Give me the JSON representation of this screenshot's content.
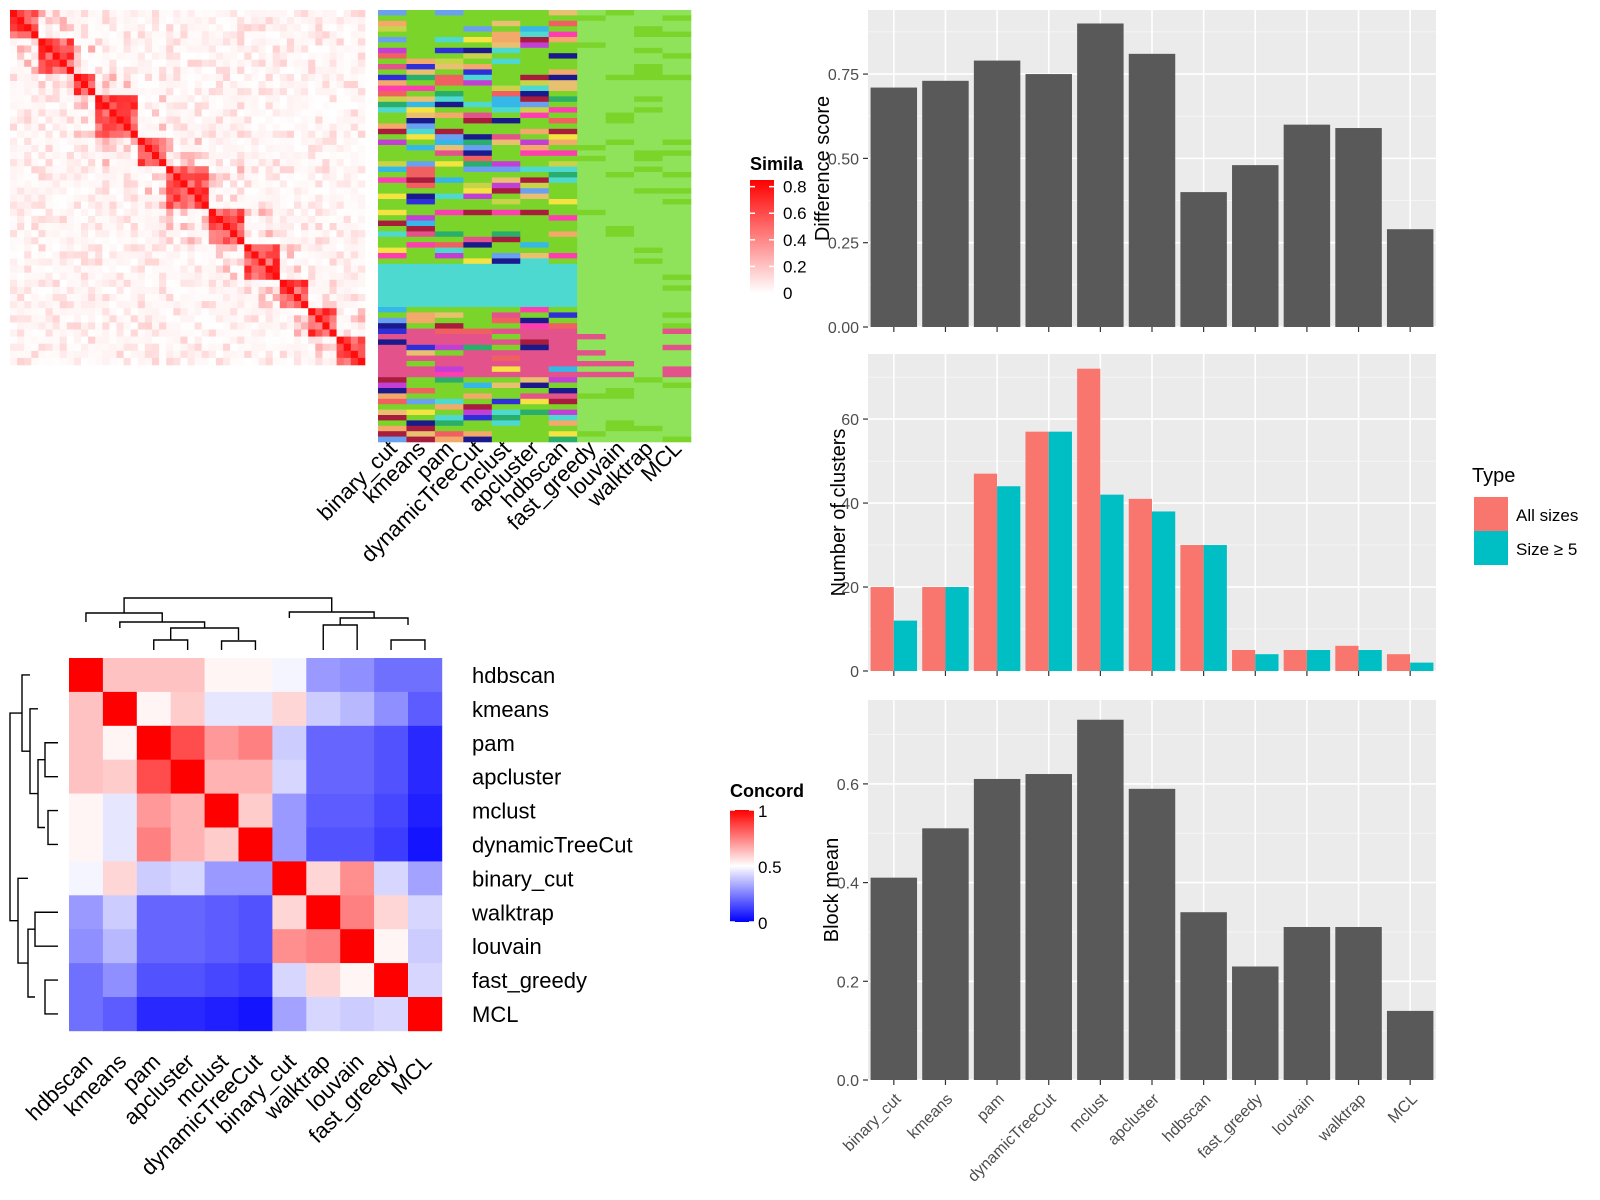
{
  "colors": {
    "panel_bg": "#EBEBEB",
    "grid": "#FFFFFF",
    "bar": "#595959",
    "all_sizes": "#F8766D",
    "size_ge5": "#00BFC4",
    "sim_high": "#FF0000",
    "conc_low": "#0000FF",
    "cluster_bg": "#8FE35A"
  },
  "chart_data": [
    {
      "type": "heatmap",
      "name": "similarity-matrix",
      "legend_title": "Simila",
      "legend_ticks": [
        "0.8",
        "0.6",
        "0.4",
        "0.2",
        "0"
      ],
      "legend_range": [
        0,
        0.85
      ],
      "colors": [
        "#FFFFFF",
        "#FF0000"
      ]
    },
    {
      "type": "heatmap",
      "name": "cluster-assignments",
      "columns": [
        "binary_cut",
        "kmeans",
        "pam",
        "dynamicTreeCut",
        "mclust",
        "apcluster",
        "hdbscan",
        "fast_greedy",
        "louvain",
        "walktrap",
        "MCL"
      ]
    },
    {
      "type": "heatmap",
      "name": "concordance",
      "legend_title": "Concord",
      "legend_ticks": [
        "1",
        "0.5",
        "0"
      ],
      "legend_range": [
        0,
        1
      ],
      "colors": [
        "#0000FF",
        "#FFFFFF",
        "#FF0000"
      ],
      "rows": [
        "hdbscan",
        "kmeans",
        "pam",
        "apcluster",
        "mclust",
        "dynamicTreeCut",
        "binary_cut",
        "walktrap",
        "louvain",
        "fast_greedy",
        "MCL"
      ],
      "columns": [
        "hdbscan",
        "kmeans",
        "pam",
        "apcluster",
        "mclust",
        "dynamicTreeCut",
        "binary_cut",
        "walktrap",
        "louvain",
        "fast_greedy",
        "MCL"
      ],
      "values": [
        [
          1.0,
          0.62,
          0.62,
          0.62,
          0.52,
          0.52,
          0.48,
          0.3,
          0.28,
          0.22,
          0.22
        ],
        [
          0.62,
          1.0,
          0.52,
          0.6,
          0.45,
          0.45,
          0.58,
          0.4,
          0.36,
          0.28,
          0.18
        ],
        [
          0.62,
          0.52,
          1.0,
          0.85,
          0.7,
          0.75,
          0.4,
          0.2,
          0.2,
          0.16,
          0.08
        ],
        [
          0.62,
          0.6,
          0.85,
          1.0,
          0.65,
          0.65,
          0.42,
          0.2,
          0.2,
          0.16,
          0.08
        ],
        [
          0.52,
          0.45,
          0.7,
          0.65,
          1.0,
          0.6,
          0.3,
          0.18,
          0.18,
          0.14,
          0.06
        ],
        [
          0.52,
          0.45,
          0.75,
          0.65,
          0.6,
          1.0,
          0.3,
          0.16,
          0.16,
          0.12,
          0.04
        ],
        [
          0.48,
          0.58,
          0.4,
          0.42,
          0.3,
          0.3,
          1.0,
          0.58,
          0.72,
          0.42,
          0.32
        ],
        [
          0.3,
          0.4,
          0.2,
          0.2,
          0.18,
          0.16,
          0.58,
          1.0,
          0.75,
          0.58,
          0.42
        ],
        [
          0.28,
          0.36,
          0.2,
          0.2,
          0.18,
          0.16,
          0.72,
          0.75,
          1.0,
          0.52,
          0.4
        ],
        [
          0.22,
          0.28,
          0.16,
          0.16,
          0.14,
          0.12,
          0.42,
          0.58,
          0.52,
          1.0,
          0.42
        ],
        [
          0.22,
          0.18,
          0.08,
          0.08,
          0.06,
          0.04,
          0.32,
          0.42,
          0.4,
          0.42,
          1.0
        ]
      ]
    },
    {
      "type": "bar",
      "name": "difference-score",
      "ylabel": "Difference score",
      "categories": [
        "binary_cut",
        "kmeans",
        "pam",
        "dynamicTreeCut",
        "mclust",
        "apcluster",
        "hdbscan",
        "fast_greedy",
        "louvain",
        "walktrap",
        "MCL"
      ],
      "values": [
        0.71,
        0.73,
        0.79,
        0.75,
        0.9,
        0.81,
        0.4,
        0.48,
        0.6,
        0.59,
        0.29
      ],
      "ylim": [
        0,
        0.94
      ],
      "yticks": [
        "0.00",
        "0.25",
        "0.50",
        "0.75"
      ]
    },
    {
      "type": "bar",
      "name": "number-of-clusters",
      "ylabel": "Number of clusters",
      "categories": [
        "binary_cut",
        "kmeans",
        "pam",
        "dynamicTreeCut",
        "mclust",
        "apcluster",
        "hdbscan",
        "fast_greedy",
        "louvain",
        "walktrap",
        "MCL"
      ],
      "series": [
        {
          "name": "All sizes",
          "values": [
            20,
            20,
            47,
            57,
            72,
            41,
            30,
            5,
            5,
            6,
            4
          ]
        },
        {
          "name": "Size ≥ 5",
          "values": [
            12,
            20,
            44,
            57,
            42,
            38,
            30,
            4,
            5,
            5,
            2
          ]
        }
      ],
      "ylim": [
        0,
        75.5
      ],
      "yticks": [
        "0",
        "20",
        "40",
        "60"
      ],
      "legend_title": "Type",
      "legend_position": "right"
    },
    {
      "type": "bar",
      "name": "block-mean",
      "ylabel": "Block mean",
      "categories": [
        "binary_cut",
        "kmeans",
        "pam",
        "dynamicTreeCut",
        "mclust",
        "apcluster",
        "hdbscan",
        "fast_greedy",
        "louvain",
        "walktrap",
        "MCL"
      ],
      "values": [
        0.41,
        0.51,
        0.61,
        0.62,
        0.73,
        0.59,
        0.34,
        0.23,
        0.31,
        0.31,
        0.14
      ],
      "ylim": [
        0,
        0.77
      ],
      "yticks": [
        "0.0",
        "0.2",
        "0.4",
        "0.6"
      ]
    }
  ]
}
